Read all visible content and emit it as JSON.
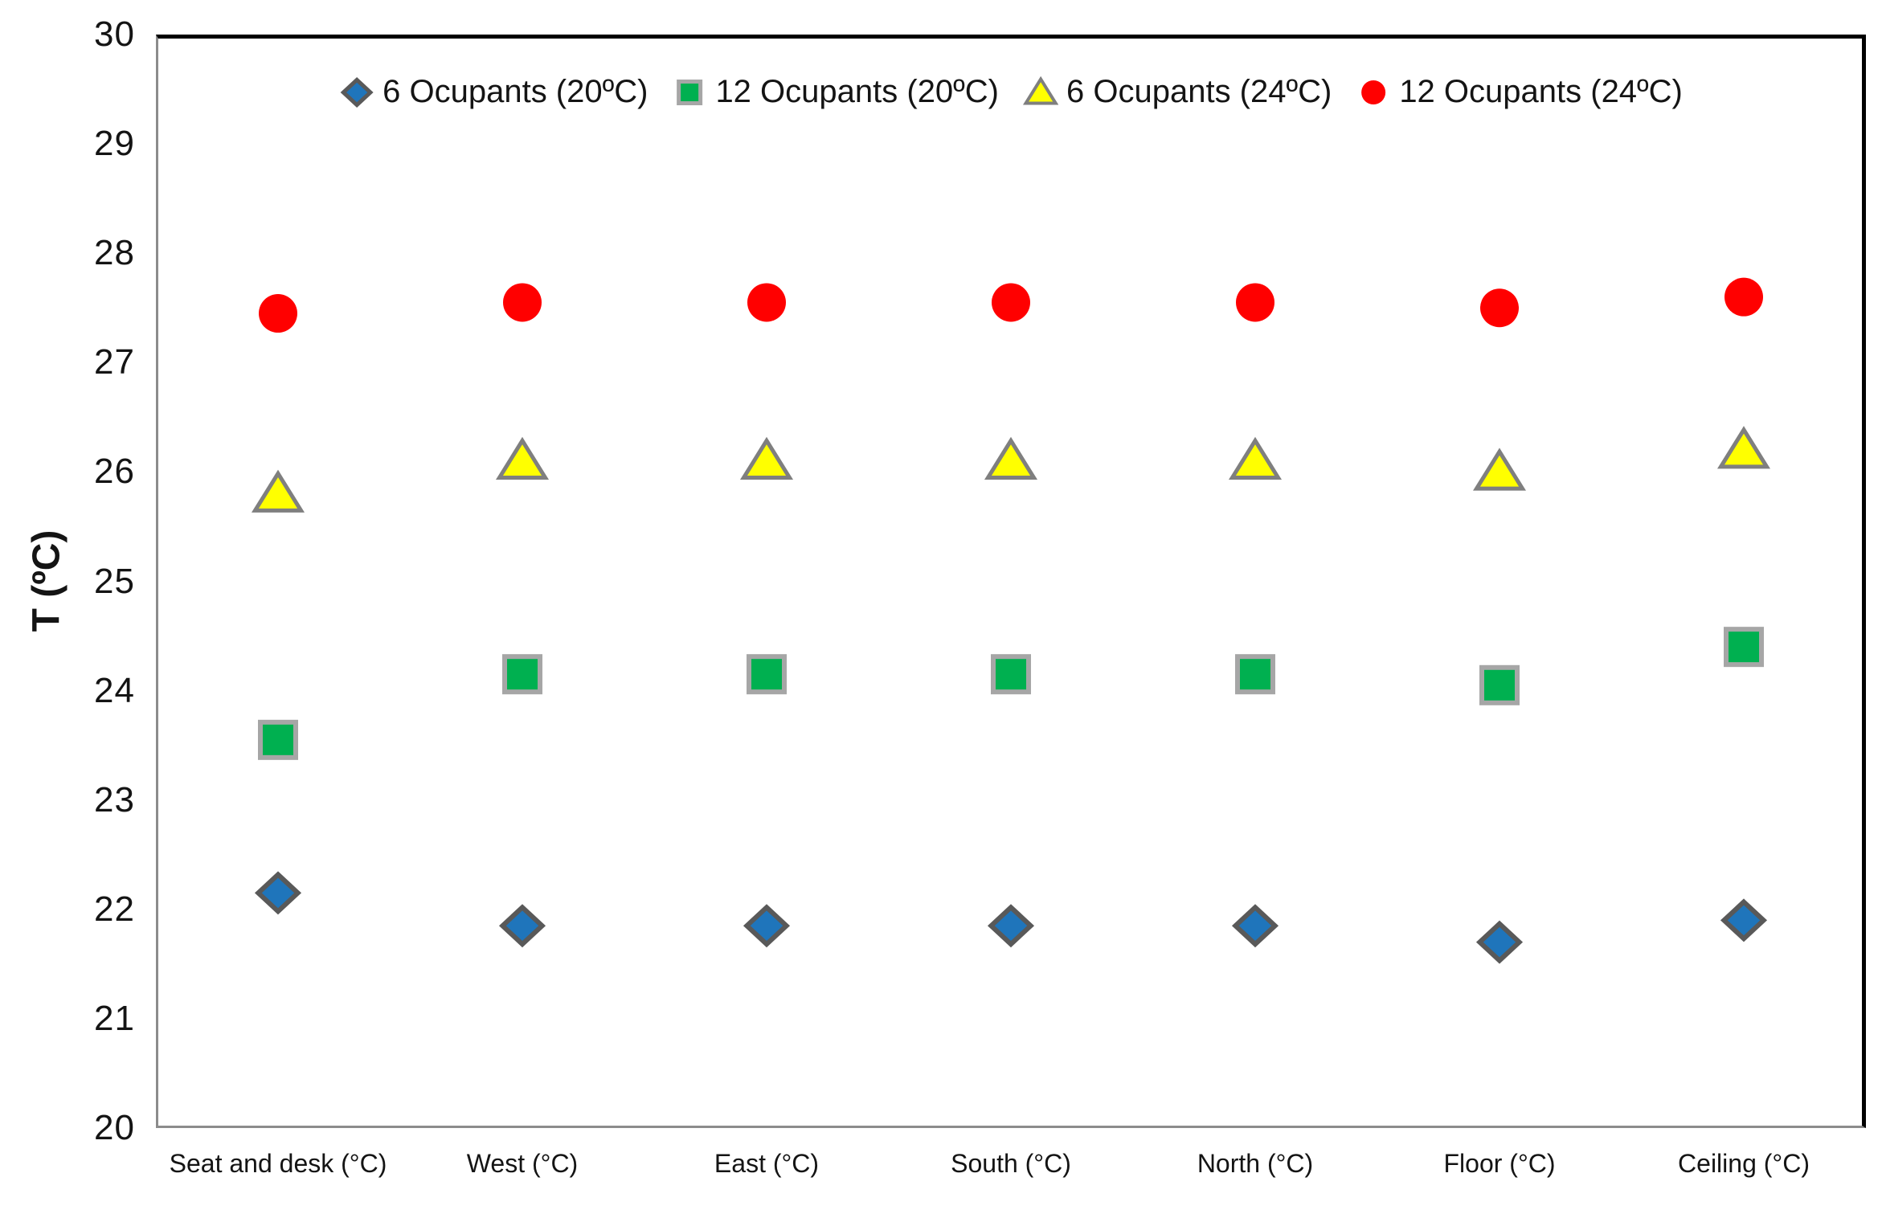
{
  "chart_data": {
    "type": "scatter",
    "title": "",
    "xlabel": "",
    "ylabel": "T (ºC)",
    "ylim": [
      20,
      30
    ],
    "ytick_step": 1,
    "grid": false,
    "legend_position": "top-center",
    "categories": [
      "Seat and desk (°C)",
      "West (°C)",
      "East (°C)",
      "South (°C)",
      "North (°C)",
      "Floor (°C)",
      "Ceiling (°C)"
    ],
    "series": [
      {
        "name": "6 Ocupants (20ºC)",
        "marker": "diamond",
        "fill": "#1F75BB",
        "stroke": "#595959",
        "values": [
          22.15,
          21.85,
          21.85,
          21.85,
          21.85,
          21.7,
          21.9
        ]
      },
      {
        "name": "12 Ocupants (20ºC)",
        "marker": "square",
        "fill": "#00B050",
        "stroke": "#A6A6A6",
        "values": [
          23.55,
          24.15,
          24.15,
          24.15,
          24.15,
          24.05,
          24.4
        ]
      },
      {
        "name": "6 Ocupants (24ºC)",
        "marker": "triangle",
        "fill": "#FFFF00",
        "stroke": "#7F7F7F",
        "values": [
          25.8,
          26.1,
          26.1,
          26.1,
          26.1,
          26.0,
          26.2
        ]
      },
      {
        "name": "12 Ocupants (24ºC)",
        "marker": "circle",
        "fill": "#FF0000",
        "stroke": "#FF0000",
        "values": [
          27.45,
          27.55,
          27.55,
          27.55,
          27.55,
          27.5,
          27.6
        ]
      }
    ],
    "axis_colors": {
      "box": "#000000",
      "axis": "#8C8C8C",
      "text": "#141414"
    }
  }
}
